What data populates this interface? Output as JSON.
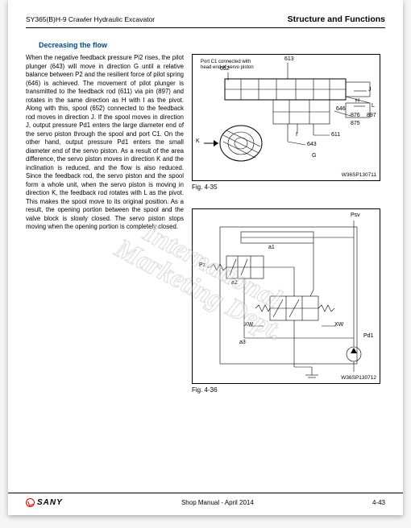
{
  "header": {
    "left": "SY365(B)H-9 Crawler Hydraulic Excavator",
    "right": "Structure and Functions"
  },
  "subtitle": "Decreasing the flow",
  "body_text": "When the negative feedback pressure Pi2 rises, the pilot plunger (643) will move in direction G until a relative balance between P2 and the resilient force of pilot spring (646) is achieved. The movement of pilot plunger is transmitted to the feedback rod (611) via pin (897) and rotates in the same direction as H with I as the pivot. Along with this, spool (652) connected to the feedback rod moves in direction J. If the spool moves in direction J, output pressure Pd1 enters the large diameter end of the servo piston through the spool and port C1. On the other hand, output pressure Pd1 enters the small diameter end of the servo piston. As a result of the area difference, the servo piston moves in direction K and the inclination is reduced, and the flow is also reduced. Since the feedback rod, the servo piston and the spool form a whole unit, when the servo piston is moving in direction K, the feedback rod rotates with L as the pivot. This makes the spool move to its original position. As a result, the opening portion between the spool and the valve block is slowly closed. The servo piston stops moving when the opening portion is completely closed.",
  "fig1": {
    "caption": "Fig. 4-35",
    "id": "W36SP130711",
    "port_note": "Port C1 connected with\nhead end of servo piston",
    "labels": {
      "n613": "613",
      "n652": "652",
      "nH": "H",
      "n646": "646",
      "n876": "876",
      "nL": "L",
      "n897": "897",
      "n875": "875",
      "n611": "611",
      "n643": "643",
      "nI": "I",
      "nK": "K",
      "nG": "G",
      "nJ": "J"
    },
    "style": {
      "stroke": "#000000",
      "line_thin": 0.6,
      "line_med": 1.0,
      "bg": "#ffffff",
      "font_size_label": 7
    }
  },
  "fig2": {
    "caption": "Fig. 4-36",
    "id": "W36SP130712",
    "labels": {
      "nPsv": "Psv",
      "nPz": "Pz",
      "nPd1": "Pd1",
      "na1": "a1",
      "na2": "a2",
      "na3": "a3",
      "nXW_left": "XW",
      "nXW_right": "XW"
    },
    "style": {
      "stroke": "#000000",
      "line_thin": 0.6,
      "line_med": 1.0,
      "bg": "#ffffff",
      "font_size_label": 7
    }
  },
  "watermark": "International\nMarketing Dept.",
  "footer": {
    "brand": "SANY",
    "center": "Shop Manual - April 2014",
    "pageno": "4-43"
  }
}
